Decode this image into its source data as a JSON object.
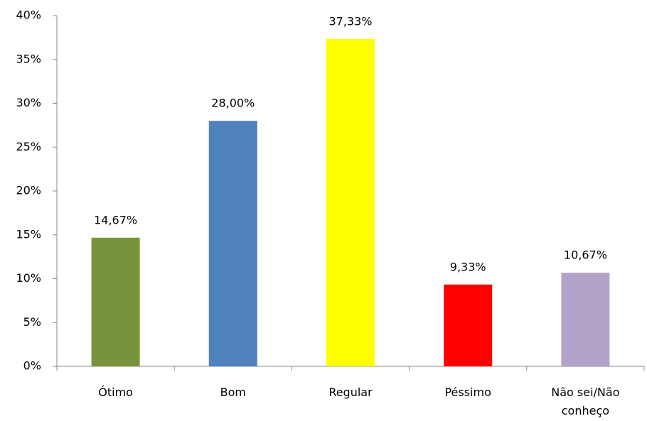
{
  "chart_data": {
    "type": "bar",
    "categories": [
      "Ótimo",
      "Bom",
      "Regular",
      "Péssimo",
      "Não sei/Não conheço"
    ],
    "values": [
      14.67,
      28,
      37.33,
      9.33,
      10.67
    ],
    "value_labels": [
      "14,67%",
      "28,00%",
      "37,33%",
      "9,33%",
      "10,67%"
    ],
    "colors": [
      "#77933c",
      "#4f81bd",
      "#ffff00",
      "#ff0000",
      "#b2a2c7"
    ],
    "ylim": [
      0,
      40
    ],
    "yticks": [
      {
        "value": 0,
        "label": "0%"
      },
      {
        "value": 5,
        "label": "5%"
      },
      {
        "value": 10,
        "label": "10%"
      },
      {
        "value": 15,
        "label": "15%"
      },
      {
        "value": 20,
        "label": "20%"
      },
      {
        "value": 25,
        "label": "25%"
      },
      {
        "value": 30,
        "label": "30%"
      },
      {
        "value": 35,
        "label": "35%"
      },
      {
        "value": 40,
        "label": "40%"
      }
    ],
    "grid": false
  }
}
